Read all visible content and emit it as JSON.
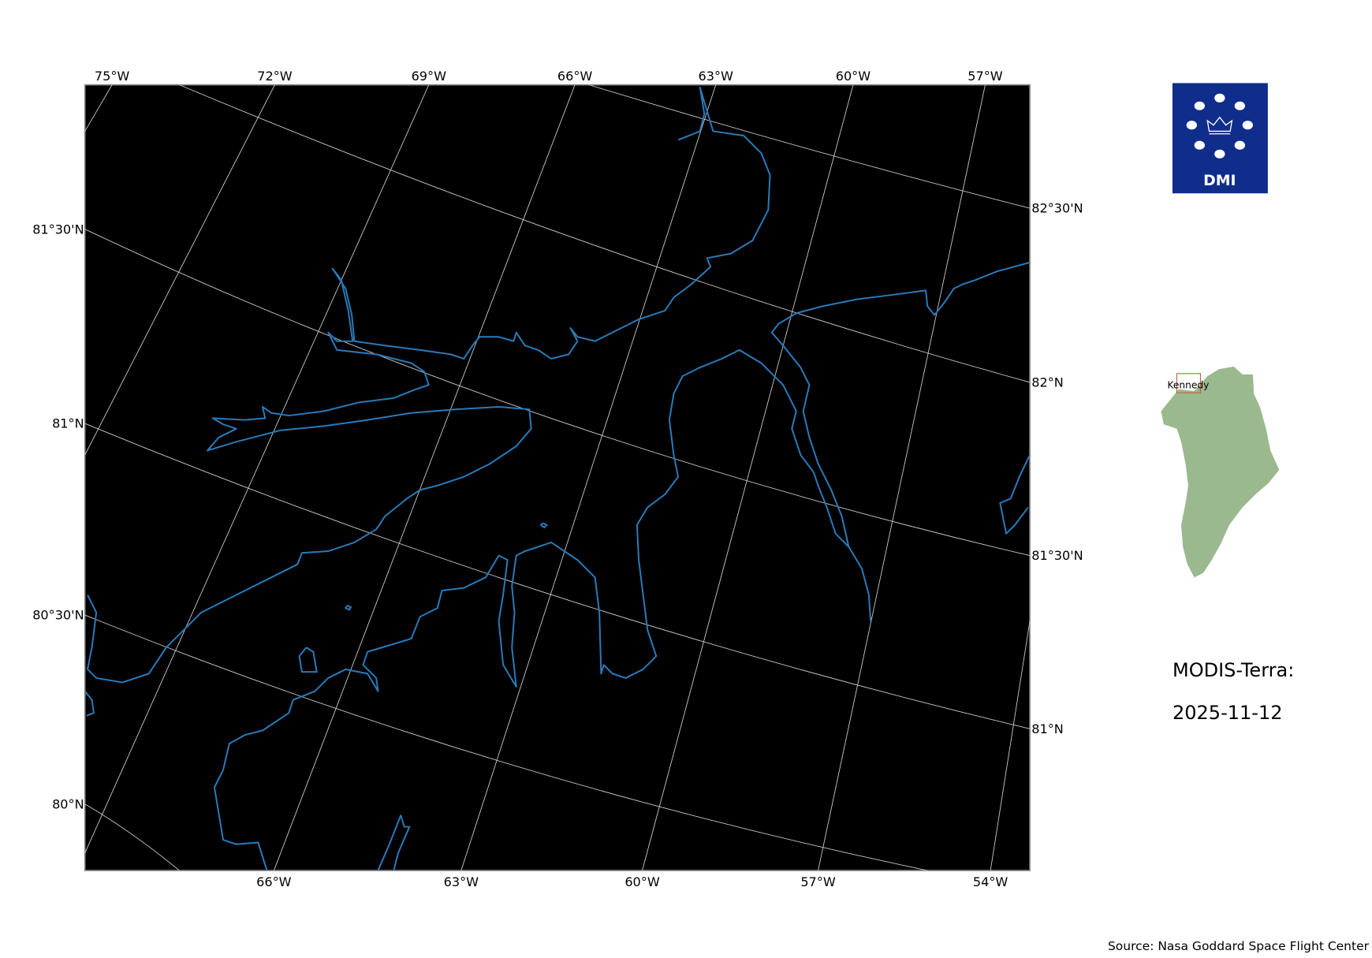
{
  "map": {
    "background": "#000000",
    "coastline_color": "#2a7ab8",
    "grid_color": "#cccccc",
    "top_lon_labels": [
      "75°W",
      "72°W",
      "69°W",
      "66°W",
      "63°W",
      "60°W",
      "57°W"
    ],
    "bottom_lon_labels": [
      "66°W",
      "63°W",
      "60°W",
      "57°W",
      "54°W"
    ],
    "left_lat_labels": [
      "81°30'N",
      "81°N",
      "80°30'N",
      "80°N"
    ],
    "right_lat_labels": [
      "82°30'N",
      "82°N",
      "81°30'N",
      "81°N"
    ]
  },
  "logo": {
    "text": "DMI",
    "color": "#0f2d8a"
  },
  "inset": {
    "region_label": "Kennedy",
    "land_color": "#9ab98e",
    "box_color": "#c0603a"
  },
  "title": {
    "line1": "MODIS-Terra:",
    "line2": "2025-11-12"
  },
  "source": "Source: Nasa Goddard Space Flight Center"
}
